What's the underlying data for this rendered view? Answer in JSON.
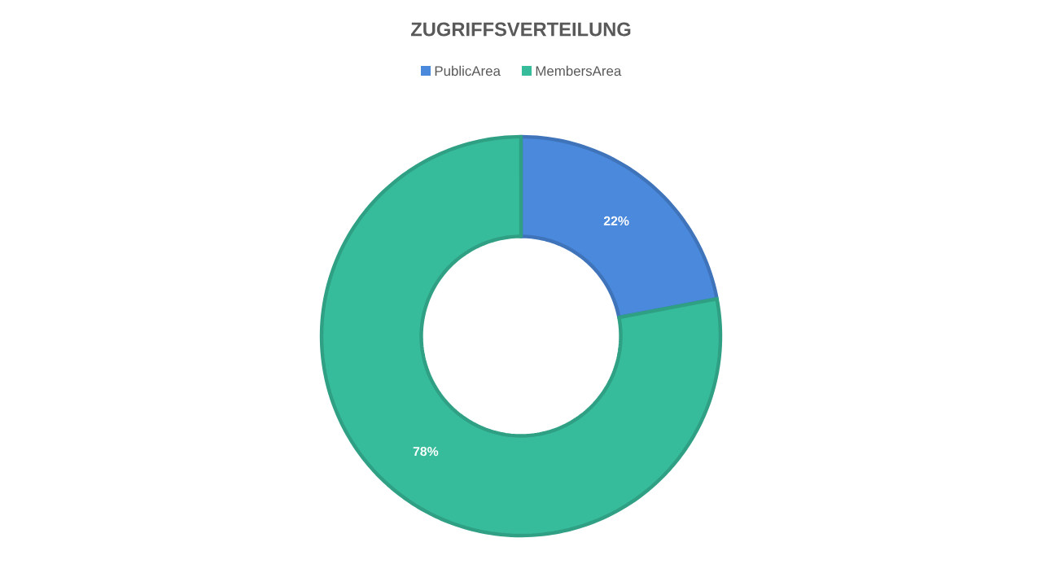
{
  "chart_data": {
    "type": "donut",
    "title": "ZUGRIFFSVERTEILUNG",
    "categories": [
      "PublicArea",
      "MembersArea"
    ],
    "values": [
      22,
      78
    ],
    "colors": [
      "#4a89dc",
      "#37bc9b"
    ],
    "value_labels": [
      "22%",
      "78%"
    ],
    "legend": "top"
  }
}
